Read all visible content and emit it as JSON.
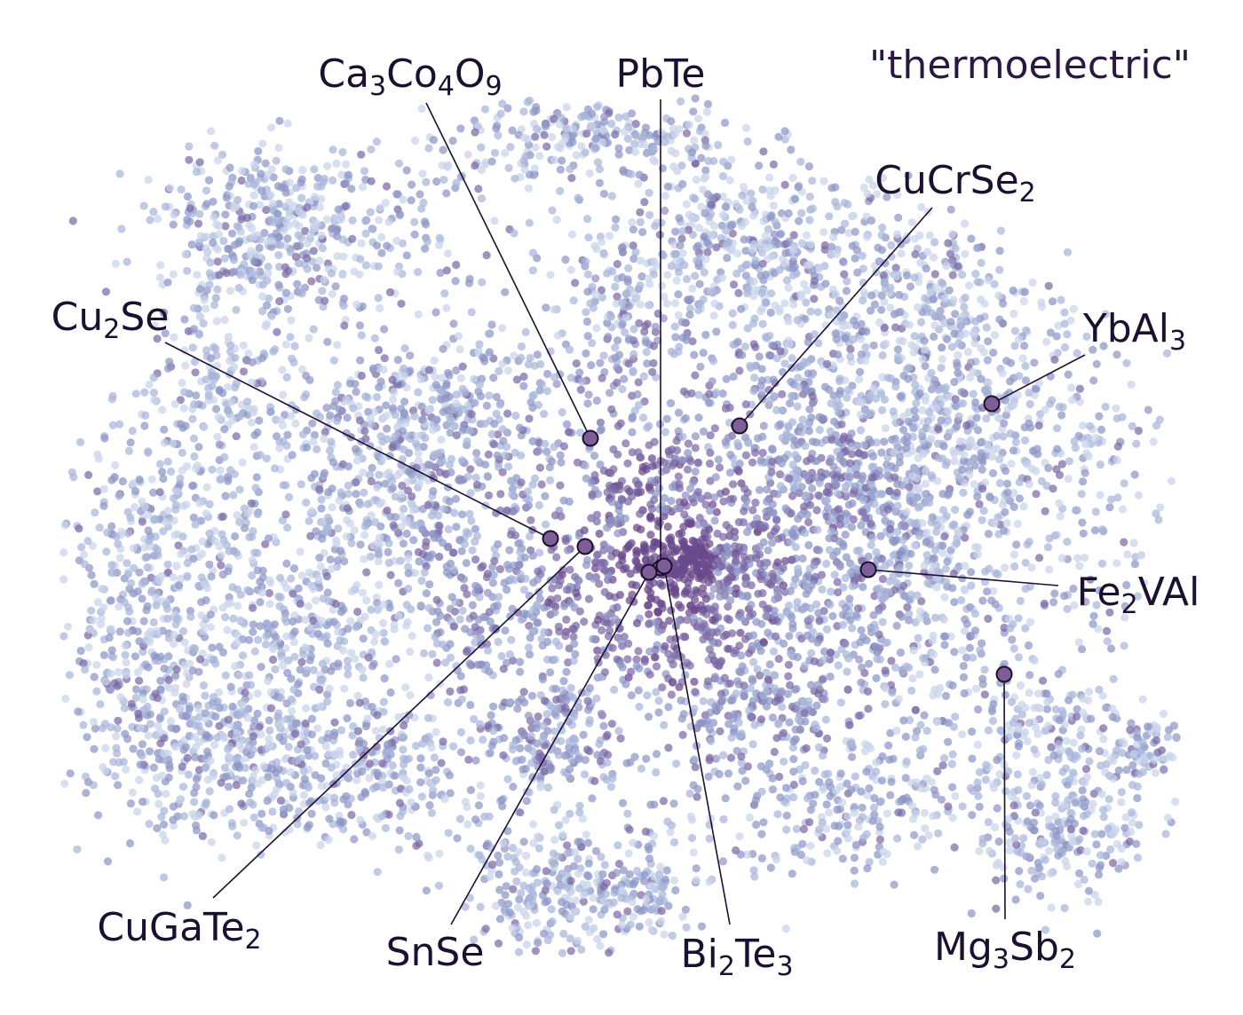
{
  "chart_data": {
    "type": "scatter",
    "title": "",
    "query": "\"thermoelectric\"",
    "xlabel": "",
    "ylabel": "",
    "grid": false,
    "axes_visible": false,
    "colormap": [
      "#c9d4ea",
      "#a7b6da",
      "#8e96c6",
      "#7b6aa6",
      "#6a4a8c"
    ],
    "marker_color": "#7e5e96",
    "marker_edge": "#1c1030",
    "highlighted_materials": [
      {
        "name": "Ca3Co4O9",
        "segments": [
          [
            "Ca",
            ""
          ],
          [
            "3",
            "sub"
          ],
          [
            "Co",
            ""
          ],
          [
            "4",
            "sub"
          ],
          [
            "O",
            ""
          ],
          [
            "9",
            "sub"
          ]
        ]
      },
      {
        "name": "PbTe",
        "segments": [
          [
            "PbTe",
            ""
          ]
        ]
      },
      {
        "name": "CuCrSe2",
        "segments": [
          [
            "CuCrSe",
            ""
          ],
          [
            "2",
            "sub"
          ]
        ]
      },
      {
        "name": "Cu2Se",
        "segments": [
          [
            "Cu",
            ""
          ],
          [
            "2",
            "sub"
          ],
          [
            "Se",
            ""
          ]
        ]
      },
      {
        "name": "YbAl3",
        "segments": [
          [
            "YbAl",
            ""
          ],
          [
            "3",
            "sub"
          ]
        ]
      },
      {
        "name": "Fe2VAl",
        "segments": [
          [
            "Fe",
            ""
          ],
          [
            "2",
            "sub"
          ],
          [
            "VAl",
            ""
          ]
        ]
      },
      {
        "name": "CuGaTe2",
        "segments": [
          [
            "CuGaTe",
            ""
          ],
          [
            "2",
            "sub"
          ]
        ]
      },
      {
        "name": "SnSe",
        "segments": [
          [
            "SnSe",
            ""
          ]
        ]
      },
      {
        "name": "Bi2Te3",
        "segments": [
          [
            "Bi",
            ""
          ],
          [
            "2",
            "sub"
          ],
          [
            "Te",
            ""
          ],
          [
            "3",
            "sub"
          ]
        ]
      },
      {
        "name": "Mg3Sb2",
        "segments": [
          [
            "Mg",
            ""
          ],
          [
            "3",
            "sub"
          ],
          [
            "Sb",
            ""
          ],
          [
            "2",
            "sub"
          ]
        ]
      }
    ]
  }
}
